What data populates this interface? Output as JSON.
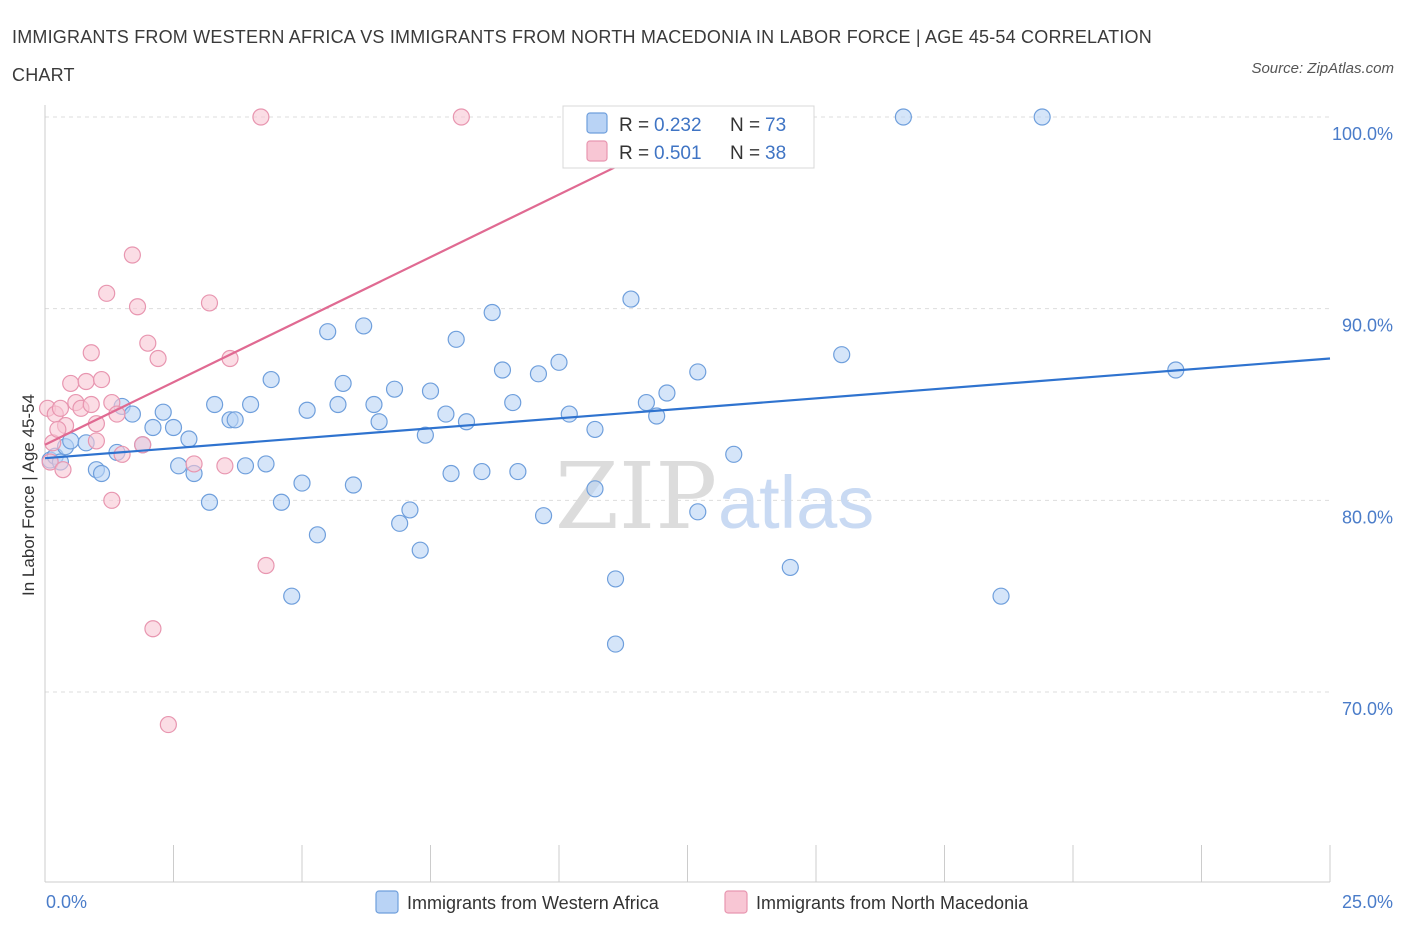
{
  "title": "IMMIGRANTS FROM WESTERN AFRICA VS IMMIGRANTS FROM NORTH MACEDONIA IN LABOR FORCE | AGE 45-54 CORRELATION CHART",
  "source": "Source: ZipAtlas.com",
  "watermark": {
    "zip": "ZIP",
    "atlas": "atlas"
  },
  "legend_stats": [
    {
      "r_label": "R =",
      "r_value": "0.232",
      "n_label": "N =",
      "n_value": "73"
    },
    {
      "r_label": "R =",
      "r_value": "0.501",
      "n_label": "N =",
      "n_value": "38"
    }
  ],
  "colors": {
    "blue_fill": "#b9d3f5",
    "blue_stroke": "#6f9fdc",
    "blue_line": "#2f73cf",
    "pink_fill": "#f8c6d4",
    "pink_stroke": "#e896b0",
    "pink_line": "#e06a92",
    "grid": "#dddddd",
    "tick_text": "#4a7cc9"
  },
  "chart_data": {
    "type": "scatter",
    "title": "IMMIGRANTS FROM WESTERN AFRICA VS IMMIGRANTS FROM NORTH MACEDONIA IN LABOR FORCE | AGE 45-54 CORRELATION CHART",
    "xlabel": "",
    "ylabel": "In Labor Force | Age 45-54",
    "xlim": [
      0,
      25
    ],
    "ylim": [
      60,
      100
    ],
    "x_tick_labels": [
      "0.0%",
      "25.0%"
    ],
    "y_ticks": [
      70,
      80,
      90,
      100
    ],
    "y_tick_labels": [
      "70.0%",
      "80.0%",
      "90.0%",
      "100.0%"
    ],
    "grid": true,
    "legend_position": "top-center",
    "series": [
      {
        "name": "Immigrants from Western Africa",
        "color": "#b9d3f5",
        "r": 0.232,
        "n": 73,
        "trend": {
          "x": [
            0,
            25
          ],
          "y": [
            82.2,
            87.4
          ]
        },
        "points": [
          [
            0.1,
            82.1
          ],
          [
            0.2,
            82.3
          ],
          [
            0.3,
            82.0
          ],
          [
            0.4,
            82.8
          ],
          [
            0.5,
            83.1
          ],
          [
            0.8,
            83.0
          ],
          [
            1.0,
            81.6
          ],
          [
            1.1,
            81.4
          ],
          [
            1.4,
            82.5
          ],
          [
            1.5,
            84.9
          ],
          [
            1.7,
            84.5
          ],
          [
            1.9,
            82.9
          ],
          [
            2.1,
            83.8
          ],
          [
            2.3,
            84.6
          ],
          [
            2.5,
            83.8
          ],
          [
            2.6,
            81.8
          ],
          [
            2.8,
            83.2
          ],
          [
            2.9,
            81.4
          ],
          [
            3.2,
            79.9
          ],
          [
            3.3,
            85.0
          ],
          [
            3.6,
            84.2
          ],
          [
            3.7,
            84.2
          ],
          [
            3.9,
            81.8
          ],
          [
            4.0,
            85.0
          ],
          [
            4.3,
            81.9
          ],
          [
            4.4,
            86.3
          ],
          [
            4.6,
            79.9
          ],
          [
            4.8,
            75.0
          ],
          [
            5.0,
            80.9
          ],
          [
            5.1,
            84.7
          ],
          [
            5.3,
            78.2
          ],
          [
            5.5,
            88.8
          ],
          [
            5.7,
            85.0
          ],
          [
            5.8,
            86.1
          ],
          [
            6.0,
            80.8
          ],
          [
            6.2,
            89.1
          ],
          [
            6.4,
            85.0
          ],
          [
            6.5,
            84.1
          ],
          [
            6.8,
            85.8
          ],
          [
            6.9,
            78.8
          ],
          [
            7.1,
            79.5
          ],
          [
            7.3,
            77.4
          ],
          [
            7.4,
            83.4
          ],
          [
            7.5,
            85.7
          ],
          [
            7.8,
            84.5
          ],
          [
            7.9,
            81.4
          ],
          [
            8.0,
            88.4
          ],
          [
            8.2,
            84.1
          ],
          [
            8.5,
            81.5
          ],
          [
            8.7,
            89.8
          ],
          [
            8.9,
            86.8
          ],
          [
            9.1,
            85.1
          ],
          [
            9.2,
            81.5
          ],
          [
            9.6,
            86.6
          ],
          [
            9.7,
            79.2
          ],
          [
            10.0,
            87.2
          ],
          [
            10.2,
            84.5
          ],
          [
            10.7,
            83.7
          ],
          [
            10.7,
            80.6
          ],
          [
            11.1,
            75.9
          ],
          [
            11.1,
            72.5
          ],
          [
            11.4,
            90.5
          ],
          [
            11.7,
            85.1
          ],
          [
            11.9,
            84.4
          ],
          [
            12.1,
            85.6
          ],
          [
            12.7,
            86.7
          ],
          [
            12.7,
            79.4
          ],
          [
            13.4,
            82.4
          ],
          [
            14.5,
            76.5
          ],
          [
            15.5,
            87.6
          ],
          [
            16.7,
            100.0
          ],
          [
            18.6,
            75.0
          ],
          [
            19.4,
            100.0
          ],
          [
            22.0,
            86.8
          ]
        ]
      },
      {
        "name": "Immigrants from North Macedonia",
        "color": "#f8c6d4",
        "r": 0.501,
        "n": 38,
        "trend": {
          "x": [
            0,
            13.1
          ],
          "y": [
            82.9,
            100.0
          ]
        },
        "points": [
          [
            0.05,
            84.8
          ],
          [
            0.1,
            82.0
          ],
          [
            0.15,
            83.0
          ],
          [
            0.2,
            84.5
          ],
          [
            0.3,
            84.8
          ],
          [
            0.35,
            81.6
          ],
          [
            0.4,
            83.9
          ],
          [
            0.5,
            86.1
          ],
          [
            0.6,
            85.1
          ],
          [
            0.7,
            84.8
          ],
          [
            0.8,
            86.2
          ],
          [
            0.9,
            87.7
          ],
          [
            0.9,
            85.0
          ],
          [
            1.0,
            84.0
          ],
          [
            1.0,
            83.1
          ],
          [
            1.1,
            86.3
          ],
          [
            1.2,
            90.8
          ],
          [
            1.3,
            80.0
          ],
          [
            1.3,
            85.1
          ],
          [
            1.4,
            84.5
          ],
          [
            1.5,
            82.4
          ],
          [
            1.7,
            92.8
          ],
          [
            1.8,
            90.1
          ],
          [
            1.9,
            82.9
          ],
          [
            2.0,
            88.2
          ],
          [
            2.1,
            73.3
          ],
          [
            2.2,
            87.4
          ],
          [
            2.4,
            68.3
          ],
          [
            2.9,
            81.9
          ],
          [
            3.2,
            90.3
          ],
          [
            3.5,
            81.8
          ],
          [
            3.6,
            87.4
          ],
          [
            4.2,
            100.0
          ],
          [
            4.3,
            76.6
          ],
          [
            8.1,
            100.0
          ],
          [
            12.9,
            100.0
          ],
          [
            13.0,
            98.5
          ],
          [
            0.25,
            83.7
          ]
        ]
      }
    ]
  },
  "bottom_legend": [
    "Immigrants from Western Africa",
    "Immigrants from North Macedonia"
  ]
}
